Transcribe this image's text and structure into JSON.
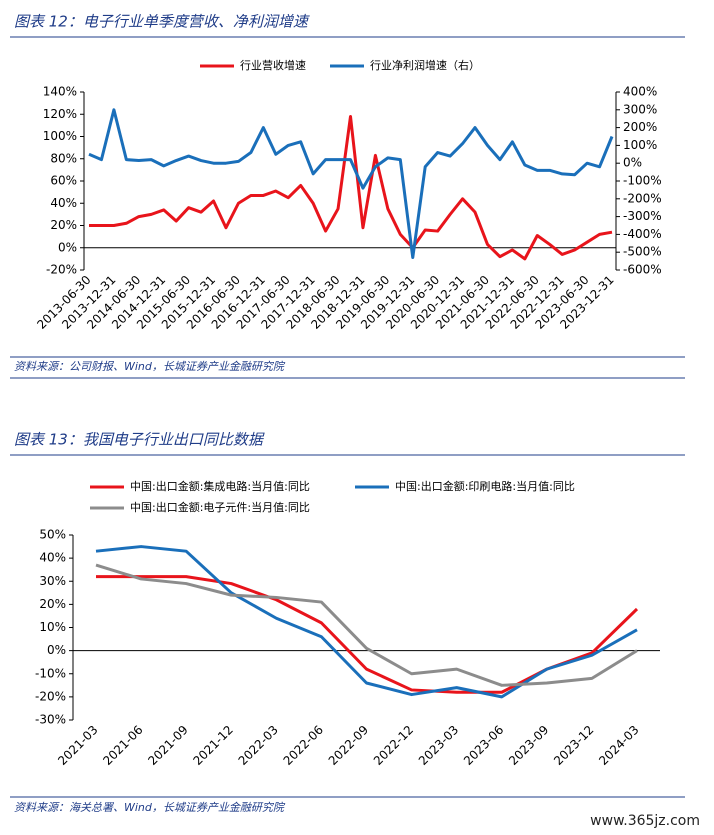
{
  "chart_data": [
    {
      "type": "line",
      "title": "图表 12：电子行业单季度营收、净利润增速",
      "source": "资料来源：公司财报、Wind，长城证券产业金融研究院",
      "categories": [
        "2013-06-30",
        null,
        "2013-12-31",
        null,
        "2014-06-30",
        null,
        "2014-12-31",
        null,
        "2015-06-30",
        null,
        "2015-12-31",
        null,
        "2016-06-30",
        null,
        "2016-12-31",
        null,
        "2017-06-30",
        null,
        "2017-12-31",
        null,
        "2018-06-30",
        null,
        "2018-12-31",
        null,
        "2019-06-30",
        null,
        "2019-12-31",
        null,
        "2020-06-30",
        null,
        "2020-12-31",
        null,
        "2021-06-30",
        null,
        "2021-12-31",
        null,
        "2022-06-30",
        null,
        "2022-12-31",
        null,
        "2023-06-30",
        null,
        "2023-12-31"
      ],
      "series": [
        {
          "name": "行业营收增速",
          "color": "#e8141b",
          "values": [
            20,
            20,
            20,
            22,
            28,
            30,
            34,
            24,
            36,
            32,
            42,
            18,
            40,
            47,
            47,
            51,
            45,
            56,
            40,
            15,
            35,
            118,
            18,
            83,
            35,
            12,
            0,
            16,
            15,
            30,
            44,
            32,
            3,
            -8,
            -2,
            -10,
            11,
            3,
            -6,
            -2,
            5,
            12,
            14
          ]
        },
        {
          "name": "行业净利润增速（右）",
          "color": "#1a6fba",
          "axis": "y2",
          "values": [
            50,
            20,
            300,
            20,
            15,
            20,
            -15,
            15,
            40,
            15,
            0,
            0,
            10,
            60,
            200,
            50,
            100,
            120,
            -60,
            20,
            20,
            20,
            -140,
            -20,
            30,
            20,
            -530,
            -20,
            60,
            40,
            110,
            200,
            100,
            20,
            120,
            -10,
            -40,
            -40,
            -60,
            -65,
            0,
            -20,
            150
          ]
        }
      ],
      "ylim": [
        -20,
        140
      ],
      "yticks": [
        {
          "value": -20,
          "label": "-20%"
        },
        {
          "value": 0,
          "label": "0%"
        },
        {
          "value": 20,
          "label": "20%"
        },
        {
          "value": 40,
          "label": "40%"
        },
        {
          "value": 60,
          "label": "60%"
        },
        {
          "value": 80,
          "label": "80%"
        },
        {
          "value": 100,
          "label": "100%"
        },
        {
          "value": 120,
          "label": "120%"
        },
        {
          "value": 140,
          "label": "140%"
        }
      ],
      "y2lim": [
        -600,
        400
      ],
      "y2ticks": [
        {
          "value": -600,
          "label": "-600%"
        },
        {
          "value": -500,
          "label": "-500%"
        },
        {
          "value": -400,
          "label": "-400%"
        },
        {
          "value": -300,
          "label": "-300%"
        },
        {
          "value": -200,
          "label": "-200%"
        },
        {
          "value": -100,
          "label": "-100%"
        },
        {
          "value": 0,
          "label": "0%"
        },
        {
          "value": 100,
          "label": "100%"
        },
        {
          "value": 200,
          "label": "200%"
        },
        {
          "value": 300,
          "label": "300%"
        },
        {
          "value": 400,
          "label": "400%"
        }
      ],
      "grid": false
    },
    {
      "type": "line",
      "title": "图表 13：我国电子行业出口同比数据",
      "source": "资料来源：海关总署、Wind，长城证券产业金融研究院",
      "categories": [
        "2021-03",
        "2021-06",
        "2021-09",
        "2021-12",
        "2022-03",
        "2022-06",
        "2022-09",
        "2022-12",
        "2023-03",
        "2023-06",
        "2023-09",
        "2023-12",
        "2024-03"
      ],
      "series": [
        {
          "name": "中国:出口金额:集成电路:当月值:同比",
          "color": "#e8141b",
          "values": [
            32,
            32,
            32,
            29,
            22,
            12,
            -8,
            -17,
            -18,
            -18,
            -8,
            -1,
            18
          ]
        },
        {
          "name": "中国:出口金额:印刷电路:当月值:同比",
          "color": "#1a6fba",
          "values": [
            43,
            45,
            43,
            25,
            14,
            6,
            -14,
            -19,
            -16,
            -20,
            -8,
            -2,
            9
          ]
        },
        {
          "name": "中国:出口金额:电子元件:当月值:同比",
          "color": "#8c8c8c",
          "values": [
            37,
            31,
            29,
            24,
            23,
            21,
            1,
            -10,
            -8,
            -15,
            -14,
            -12,
            0
          ]
        }
      ],
      "ylim": [
        -30,
        50
      ],
      "yticks": [
        {
          "value": -30,
          "label": "-30%"
        },
        {
          "value": -20,
          "label": "-20%"
        },
        {
          "value": -10,
          "label": "-10%"
        },
        {
          "value": 0,
          "label": "0%"
        },
        {
          "value": 10,
          "label": "10%"
        },
        {
          "value": 20,
          "label": "20%"
        },
        {
          "value": 30,
          "label": "30%"
        },
        {
          "value": 40,
          "label": "40%"
        },
        {
          "value": 50,
          "label": "50%"
        }
      ],
      "grid": false
    }
  ],
  "watermark": "www.365jz.com"
}
